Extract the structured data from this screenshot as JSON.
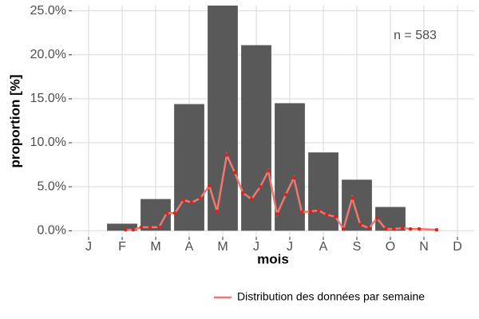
{
  "chart_data": {
    "type": "bar",
    "annotation": "n = 583",
    "x_label": "mois",
    "y_label": "proportion [%]",
    "categories": [
      "J",
      "F",
      "M",
      "A",
      "M",
      "J",
      "J",
      "A",
      "S",
      "O",
      "N",
      "D"
    ],
    "values": [
      0,
      0.8,
      3.6,
      14.4,
      25.6,
      21.1,
      14.5,
      8.9,
      5.8,
      2.7,
      0,
      0
    ],
    "color": "#595959",
    "xlim": [
      0.5,
      12.5
    ],
    "ylim": [
      -0.7,
      25.6
    ],
    "yticks": [
      {
        "value": 0,
        "label": "0.0%"
      },
      {
        "value": 5,
        "label": "5.0%"
      },
      {
        "value": 10,
        "label": "10.0%"
      },
      {
        "value": 15,
        "label": "15.0%"
      },
      {
        "value": 20,
        "label": "20.0%"
      },
      {
        "value": 25,
        "label": "25.0%"
      }
    ],
    "grid": true,
    "legend": "bottom",
    "line": {
      "name": "Distribution des données par semaine",
      "color": "#f0776f",
      "point_color": "#e0201b",
      "x": [
        2.1,
        2.33,
        2.57,
        2.83,
        3.1,
        3.33,
        3.57,
        3.83,
        4.07,
        4.33,
        4.6,
        4.83,
        5.12,
        5.36,
        5.6,
        5.86,
        6.12,
        6.36,
        6.62,
        6.88,
        7.12,
        7.36,
        7.62,
        7.86,
        8.1,
        8.36,
        8.6,
        8.86,
        9.1,
        9.36,
        9.6,
        9.86,
        10.1,
        10.36,
        10.6,
        10.86,
        11.38
      ],
      "values": [
        0.1,
        0.1,
        0.4,
        0.4,
        0.4,
        2.0,
        2.0,
        3.5,
        3.2,
        3.7,
        5.1,
        2.2,
        8.6,
        6.6,
        4.3,
        3.6,
        5.0,
        6.8,
        1.9,
        4.1,
        6.0,
        2.1,
        2.2,
        2.3,
        1.8,
        1.6,
        0.2,
        3.7,
        0.7,
        0.3,
        1.4,
        0.2,
        0.2,
        0.3,
        0.2,
        0.2,
        0.1
      ]
    }
  }
}
